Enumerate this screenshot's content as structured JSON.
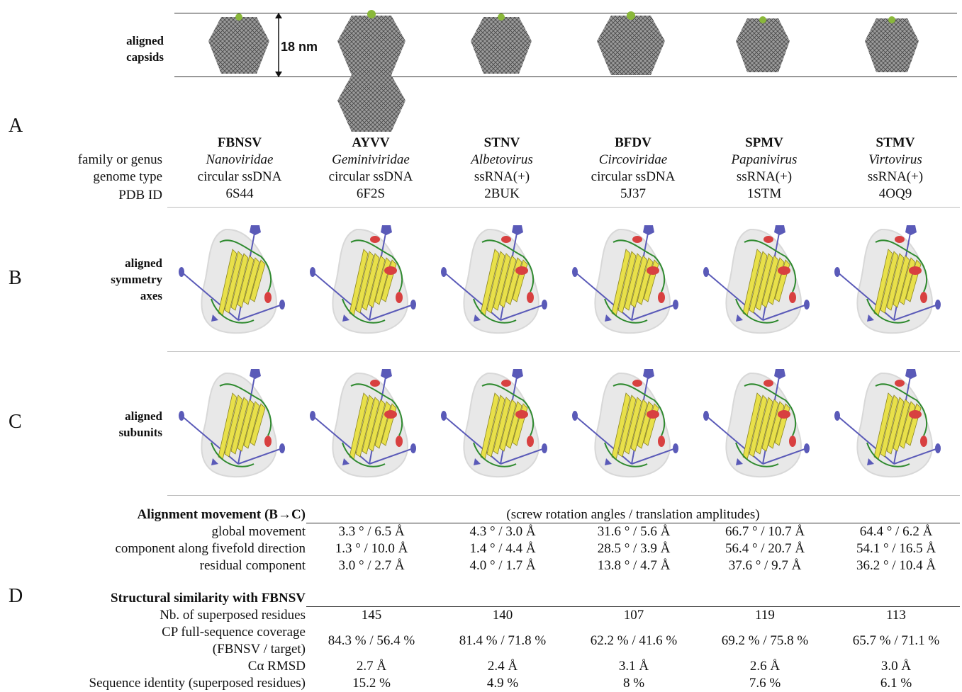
{
  "panels": {
    "A": "A",
    "B": "B",
    "C": "C",
    "D": "D"
  },
  "row_labels": {
    "capsids": [
      "aligned",
      "capsids"
    ],
    "axes": [
      "aligned",
      "symmetry",
      "axes"
    ],
    "subunits": [
      "aligned",
      "subunits"
    ]
  },
  "scale_label": "18 nm",
  "meta_labels": [
    "family or genus",
    "genome type",
    "PDB ID"
  ],
  "viruses": [
    {
      "name": "FBNSV",
      "family": "Nanoviridae",
      "genome": "circular ssDNA",
      "pdb": "6S44"
    },
    {
      "name": "AYVV",
      "family": "Geminiviridae",
      "genome": "circular ssDNA",
      "pdb": "6F2S"
    },
    {
      "name": "STNV",
      "family": "Albetovirus",
      "genome": "ssRNA(+)",
      "pdb": "2BUK"
    },
    {
      "name": "BFDV",
      "family": "Circoviridae",
      "genome": "circular ssDNA",
      "pdb": "5J37"
    },
    {
      "name": "SPMV",
      "family": "Papanivirus",
      "genome": "ssRNA(+)",
      "pdb": "1STM"
    },
    {
      "name": "STMV",
      "family": "Virtovirus",
      "genome": "ssRNA(+)",
      "pdb": "4OQ9"
    }
  ],
  "movement": {
    "header": "Alignment movement (B→C)",
    "subheader": "(screw rotation angles / translation amplitudes)",
    "rows": [
      {
        "label": "global movement",
        "values": [
          "3.3 ° / 6.5 Å",
          "4.3 ° / 3.0 Å",
          "31.6 ° / 5.6 Å",
          "66.7 ° / 10.7 Å",
          "64.4 ° / 6.2 Å"
        ]
      },
      {
        "label": "component along fivefold direction",
        "values": [
          "1.3 ° / 10.0 Å",
          "1.4 ° / 4.4 Å",
          "28.5 ° / 3.9 Å",
          "56.4 ° / 20.7 Å",
          "54.1 ° / 16.5 Å"
        ]
      },
      {
        "label": "residual component",
        "values": [
          "3.0 ° / 2.7 Å",
          "4.0 ° / 1.7 Å",
          "13.8 ° / 4.7 Å",
          "37.6 ° / 9.7 Å",
          "36.2 ° / 10.4 Å"
        ]
      }
    ]
  },
  "similarity": {
    "header": "Structural similarity with FBNSV",
    "rows": [
      {
        "label": "Nb. of superposed residues",
        "values": [
          "145",
          "140",
          "107",
          "119",
          "113"
        ]
      },
      {
        "label": "CP full-sequence coverage",
        "label2": "(FBNSV / target)",
        "values": [
          "84.3 % / 56.4 %",
          "81.4 % / 71.8 %",
          "62.2 % / 41.6 %",
          "69.2 % / 75.8 %",
          "65.7 % / 71.1 %"
        ]
      },
      {
        "label": "Cα RMSD",
        "values": [
          "2.7 Å",
          "2.4 Å",
          "3.1 Å",
          "2.6 Å",
          "3.0 Å"
        ]
      },
      {
        "label": "Sequence identity (superposed residues)",
        "values": [
          "15.2 %",
          "4.9 %",
          "8 %",
          "7.6 %",
          "6.1 %"
        ]
      }
    ]
  },
  "colors": {
    "sheet": "#e8e04a",
    "helix": "#d84040",
    "coil": "#2f8a2f",
    "axis": "#5a5ab8",
    "capsid": "#555555",
    "surface": "#e6e6e6"
  }
}
